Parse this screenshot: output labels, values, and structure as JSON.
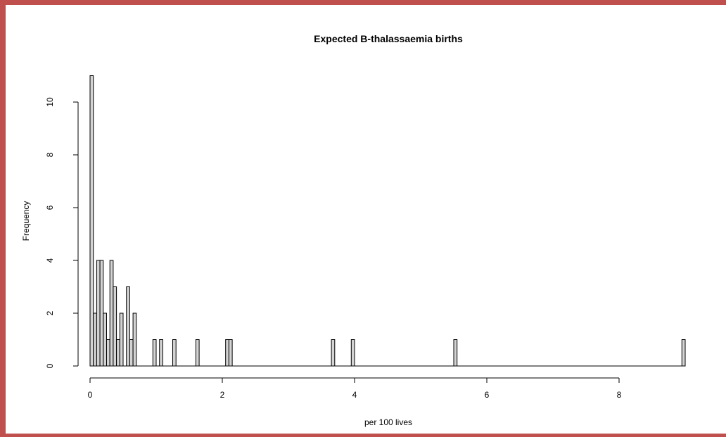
{
  "frame_color": "#c0504d",
  "chart_data": {
    "type": "bar",
    "title": "Expected B-thalassaemia births",
    "xlabel": "per 100 lives",
    "ylabel": "Frequency",
    "xlim": [
      0,
      9
    ],
    "ylim": [
      0,
      11
    ],
    "x_ticks": [
      0,
      2,
      4,
      6,
      8
    ],
    "y_ticks": [
      0,
      2,
      4,
      6,
      8,
      10
    ],
    "bin_width": 0.05,
    "bar_fill": "#d3d3d3",
    "bar_stroke": "#000000",
    "grid": false,
    "legend": "none",
    "bins": [
      {
        "x0": 0.0,
        "x1": 0.05,
        "count": 11
      },
      {
        "x0": 0.05,
        "x1": 0.1,
        "count": 2
      },
      {
        "x0": 0.1,
        "x1": 0.15,
        "count": 4
      },
      {
        "x0": 0.15,
        "x1": 0.2,
        "count": 4
      },
      {
        "x0": 0.2,
        "x1": 0.25,
        "count": 2
      },
      {
        "x0": 0.25,
        "x1": 0.3,
        "count": 1
      },
      {
        "x0": 0.3,
        "x1": 0.35,
        "count": 4
      },
      {
        "x0": 0.35,
        "x1": 0.4,
        "count": 3
      },
      {
        "x0": 0.4,
        "x1": 0.45,
        "count": 1
      },
      {
        "x0": 0.45,
        "x1": 0.5,
        "count": 2
      },
      {
        "x0": 0.5,
        "x1": 0.55,
        "count": 0
      },
      {
        "x0": 0.55,
        "x1": 0.6,
        "count": 3
      },
      {
        "x0": 0.6,
        "x1": 0.65,
        "count": 1
      },
      {
        "x0": 0.65,
        "x1": 0.7,
        "count": 2
      },
      {
        "x0": 0.95,
        "x1": 1.0,
        "count": 1
      },
      {
        "x0": 1.05,
        "x1": 1.1,
        "count": 1
      },
      {
        "x0": 1.25,
        "x1": 1.3,
        "count": 1
      },
      {
        "x0": 1.6,
        "x1": 1.65,
        "count": 1
      },
      {
        "x0": 2.05,
        "x1": 2.1,
        "count": 1
      },
      {
        "x0": 2.1,
        "x1": 2.15,
        "count": 1
      },
      {
        "x0": 3.65,
        "x1": 3.7,
        "count": 1
      },
      {
        "x0": 3.95,
        "x1": 4.0,
        "count": 1
      },
      {
        "x0": 5.5,
        "x1": 5.55,
        "count": 1
      },
      {
        "x0": 8.95,
        "x1": 9.0,
        "count": 1
      }
    ]
  }
}
